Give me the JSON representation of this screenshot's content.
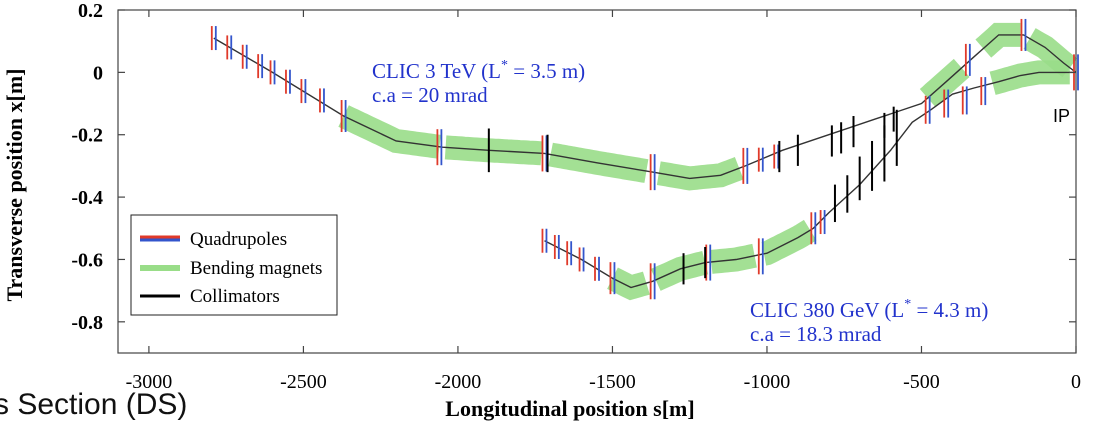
{
  "chart_data": {
    "type": "line",
    "xlabel": "Longitudinal position s[m]",
    "ylabel": "Transverse position x[m]",
    "xlim": [
      -3100,
      0
    ],
    "ylim": [
      -0.9,
      0.2
    ],
    "x_ticks": [
      -3000,
      -2500,
      -2000,
      -1500,
      -1000,
      -500,
      0
    ],
    "x_tick_labels": [
      "-3000",
      "-2500",
      "-2000",
      "-1500",
      "-1000",
      "-500",
      "0"
    ],
    "y_ticks": [
      0.2,
      0,
      -0.2,
      -0.4,
      -0.6,
      -0.8
    ],
    "y_tick_labels": [
      "0.2",
      "0",
      "-0.2",
      "-0.4",
      "-0.6",
      "-0.8"
    ],
    "series": [
      {
        "label_line1": "CLIC 3 TeV (L",
        "label_sup": "*",
        "label_line1_end": " = 3.5 m)",
        "label_line2": "c.a = 20 mrad",
        "x": [
          -2790,
          -2600,
          -2370,
          -2200,
          -2050,
          -1900,
          -1720,
          -1550,
          -1370,
          -1250,
          -1150,
          -1070,
          -950,
          -800,
          -650,
          -500,
          -420,
          -330,
          -250,
          -170,
          -100,
          -40,
          0
        ],
        "y": [
          0.11,
          0.0,
          -0.14,
          -0.22,
          -0.24,
          -0.25,
          -0.26,
          -0.29,
          -0.32,
          -0.34,
          -0.33,
          -0.3,
          -0.25,
          -0.2,
          -0.15,
          -0.1,
          -0.03,
          0.05,
          0.12,
          0.12,
          0.08,
          0.03,
          0.0
        ]
      },
      {
        "label_line1": "CLIC 380 GeV (L",
        "label_sup": "*",
        "label_line1_end": " = 4.3 m)",
        "label_line2": "c.a = 18.3 mrad",
        "x": [
          -1720,
          -1600,
          -1500,
          -1440,
          -1370,
          -1280,
          -1200,
          -1100,
          -1000,
          -900,
          -850,
          -800,
          -700,
          -600,
          -530,
          -470,
          -400,
          -330,
          -250,
          -180,
          -120,
          -60,
          0
        ],
        "y": [
          -0.54,
          -0.6,
          -0.66,
          -0.69,
          -0.67,
          -0.63,
          -0.61,
          -0.6,
          -0.58,
          -0.53,
          -0.5,
          -0.45,
          -0.36,
          -0.25,
          -0.16,
          -0.12,
          -0.07,
          -0.05,
          -0.03,
          -0.01,
          0.0,
          0.0,
          0.0
        ]
      }
    ],
    "quadrupoles": [
      {
        "s": -2790,
        "x": 0.11,
        "w": 12
      },
      {
        "s": -2740,
        "x": 0.08,
        "w": 12
      },
      {
        "s": -2690,
        "x": 0.05,
        "w": 12
      },
      {
        "s": -2640,
        "x": 0.02,
        "w": 12
      },
      {
        "s": -2600,
        "x": 0.0,
        "w": 12
      },
      {
        "s": -2550,
        "x": -0.03,
        "w": 12
      },
      {
        "s": -2500,
        "x": -0.06,
        "w": 12
      },
      {
        "s": -2440,
        "x": -0.09,
        "w": 12
      },
      {
        "s": -2370,
        "x": -0.14,
        "w": 16
      },
      {
        "s": -2060,
        "x": -0.24,
        "w": 18
      },
      {
        "s": -1720,
        "x": -0.26,
        "w": 18
      },
      {
        "s": -1370,
        "x": -0.32,
        "w": 18
      },
      {
        "s": -1070,
        "x": -0.3,
        "w": 18
      },
      {
        "s": -1020,
        "x": -0.28,
        "w": 12
      },
      {
        "s": -970,
        "x": -0.27,
        "w": 12
      },
      {
        "s": -350,
        "x": 0.04,
        "w": 16
      },
      {
        "s": -170,
        "x": 0.12,
        "w": 16
      },
      {
        "s": 0,
        "x": 0.0,
        "w": 18
      },
      {
        "s": -1720,
        "x": -0.54,
        "w": 12
      },
      {
        "s": -1680,
        "x": -0.56,
        "w": 12
      },
      {
        "s": -1640,
        "x": -0.58,
        "w": 12
      },
      {
        "s": -1600,
        "x": -0.6,
        "w": 12
      },
      {
        "s": -1550,
        "x": -0.63,
        "w": 12
      },
      {
        "s": -1500,
        "x": -0.66,
        "w": 16
      },
      {
        "s": -1370,
        "x": -0.67,
        "w": 18
      },
      {
        "s": -1190,
        "x": -0.61,
        "w": 18
      },
      {
        "s": -1020,
        "x": -0.59,
        "w": 18
      },
      {
        "s": -850,
        "x": -0.5,
        "w": 16
      },
      {
        "s": -820,
        "x": -0.48,
        "w": 12
      },
      {
        "s": -480,
        "x": -0.12,
        "w": 14
      },
      {
        "s": -420,
        "x": -0.1,
        "w": 14
      },
      {
        "s": -360,
        "x": -0.09,
        "w": 14
      },
      {
        "s": -300,
        "x": -0.06,
        "w": 14
      }
    ],
    "bending_magnets": [
      {
        "from": -2370,
        "to": -2060
      },
      {
        "from": -2040,
        "to": -1730
      },
      {
        "from": -1700,
        "to": -1390
      },
      {
        "from": -1350,
        "to": -1090
      },
      {
        "from": -480,
        "to": -370
      },
      {
        "from": -300,
        "to": -180
      },
      {
        "from": -150,
        "to": -20
      },
      {
        "from": -1500,
        "to": -1390
      },
      {
        "from": -1360,
        "to": -1200
      },
      {
        "from": -1180,
        "to": -1040
      },
      {
        "from": -1010,
        "to": -860
      },
      {
        "from": -270,
        "to": -20
      }
    ],
    "collimators": [
      {
        "s": -1900,
        "x": -0.25,
        "h": 0.14
      },
      {
        "s": -1710,
        "x": -0.26,
        "h": 0.12
      },
      {
        "s": -960,
        "x": -0.27,
        "h": 0.1
      },
      {
        "s": -900,
        "x": -0.25,
        "h": 0.1
      },
      {
        "s": -790,
        "x": -0.22,
        "h": 0.1
      },
      {
        "s": -760,
        "x": -0.21,
        "h": 0.1
      },
      {
        "s": -720,
        "x": -0.19,
        "h": 0.1
      },
      {
        "s": -620,
        "x": -0.17,
        "h": 0.08
      },
      {
        "s": -590,
        "x": -0.15,
        "h": 0.08
      },
      {
        "s": -1270,
        "x": -0.63,
        "h": 0.1
      },
      {
        "s": -1200,
        "x": -0.61,
        "h": 0.1
      },
      {
        "s": -780,
        "x": -0.42,
        "h": 0.12
      },
      {
        "s": -740,
        "x": -0.39,
        "h": 0.12
      },
      {
        "s": -700,
        "x": -0.34,
        "h": 0.14
      },
      {
        "s": -660,
        "x": -0.3,
        "h": 0.16
      },
      {
        "s": -620,
        "x": -0.26,
        "h": 0.18
      },
      {
        "s": -580,
        "x": -0.21,
        "h": 0.18
      }
    ],
    "legend": {
      "position": "lower-left",
      "entries": [
        {
          "label": "Quadrupoles",
          "color": "#3355cc",
          "accent": "#e03a2a"
        },
        {
          "label": "Bending magnets",
          "color": "#99dd88"
        },
        {
          "label": "Collimators",
          "color": "#000000"
        }
      ]
    },
    "annotations": [
      {
        "text": "IP"
      }
    ],
    "colors": {
      "label": "#2233cc",
      "beamline": "#333333",
      "quad_blue": "#3355cc",
      "quad_red": "#e03a2a",
      "bend": "#99dd88"
    }
  },
  "overlay_text": "s Section (DS)"
}
